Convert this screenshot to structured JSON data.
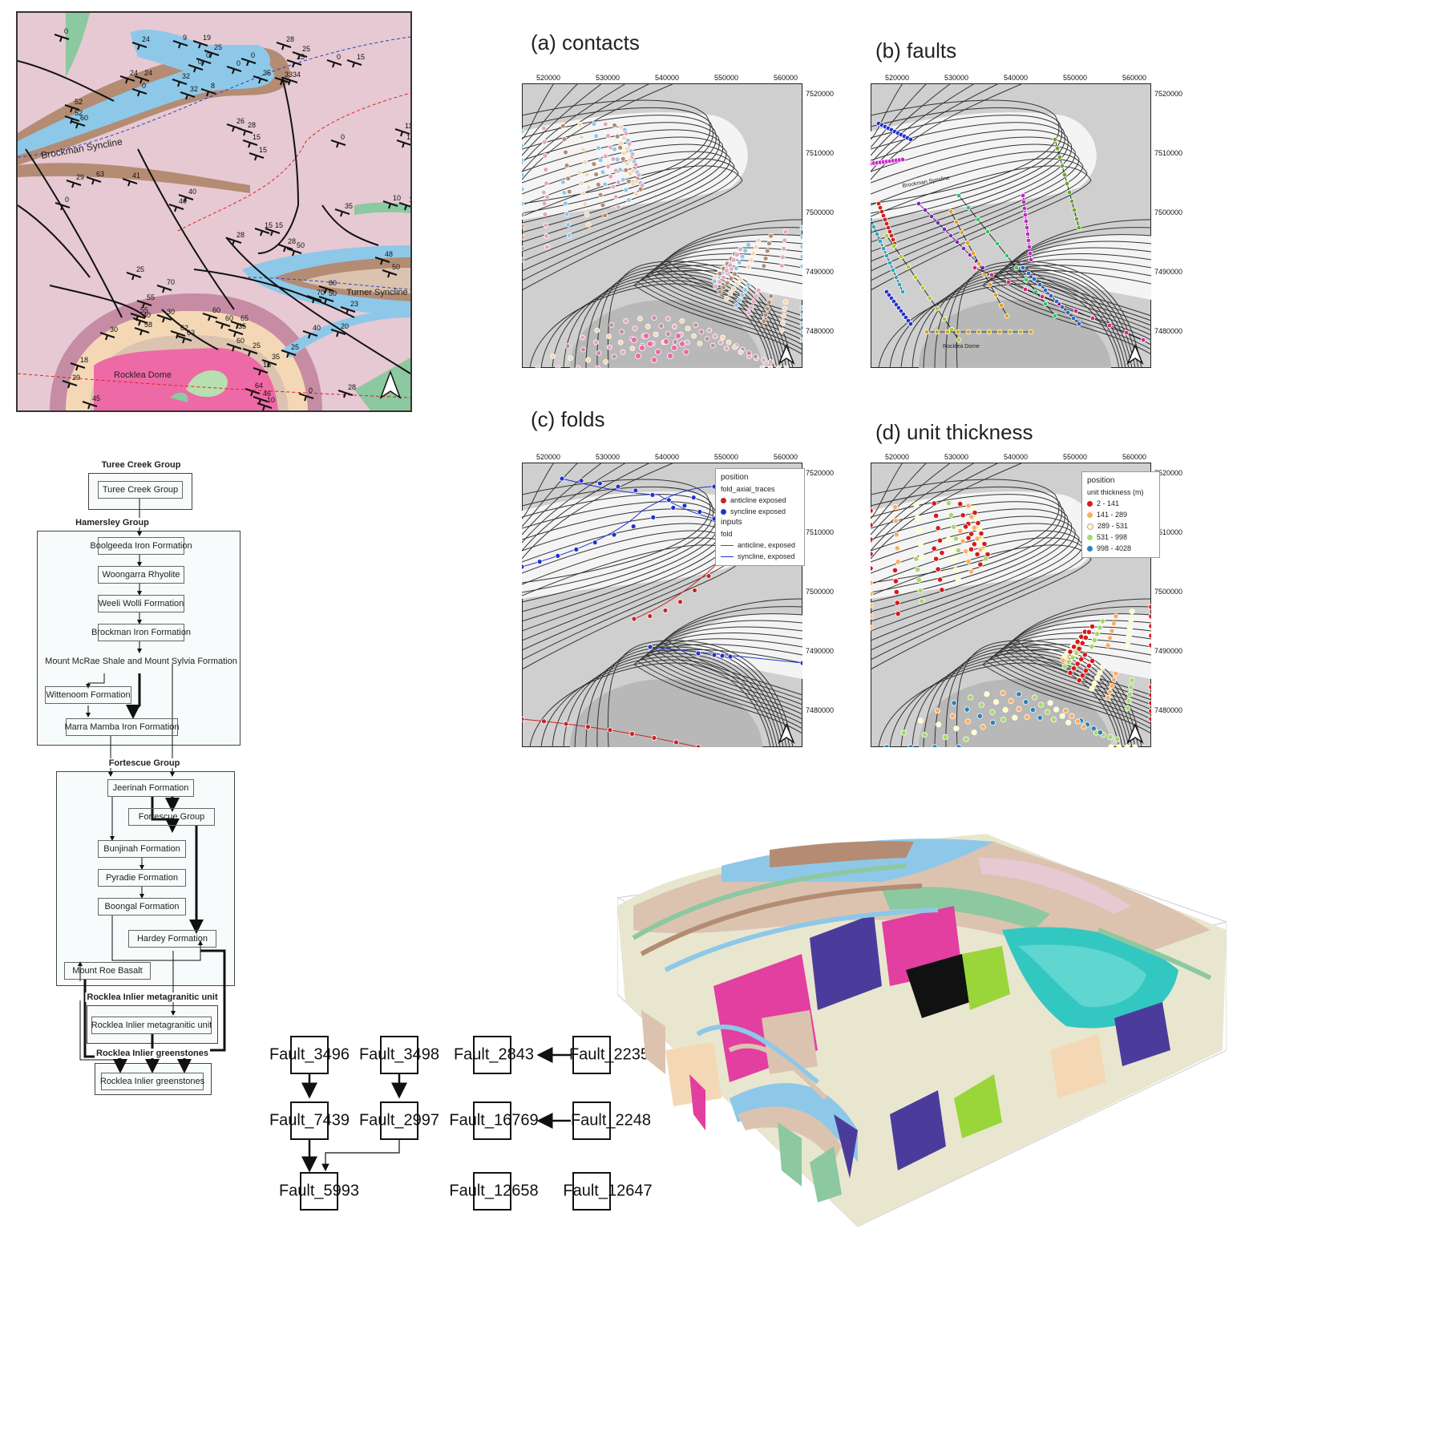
{
  "geology_map": {
    "labels": {
      "brockman": "Brockman Syncline",
      "turner": "Turner Syncline",
      "rocklea": "Rocklea Dome"
    },
    "dips": [
      "0",
      "24",
      "24",
      "9",
      "0",
      "19",
      "25",
      "0",
      "0",
      "0",
      "24",
      "0",
      "32",
      "32",
      "8",
      "28",
      "25",
      "25",
      "0",
      "35",
      "33",
      "34",
      "15",
      "52",
      "52",
      "60",
      "26",
      "28",
      "15",
      "15",
      "0",
      "11",
      "11",
      "29",
      "63",
      "41",
      "40",
      "40",
      "0",
      "10",
      "10",
      "35",
      "15",
      "15",
      "28",
      "50",
      "48",
      "50",
      "28",
      "80",
      "50",
      "23",
      "25",
      "70",
      "55",
      "55",
      "40",
      "30",
      "62",
      "58",
      "63",
      "60",
      "60",
      "65",
      "35",
      "60",
      "25",
      "25",
      "16",
      "35",
      "64",
      "46",
      "70",
      "40",
      "20",
      "30",
      "18",
      "29",
      "45",
      "10",
      "0",
      "28"
    ],
    "colors": {
      "base": "#e6c9d3",
      "blue": "#8ec8e8",
      "brown": "#b48c74",
      "tan": "#dcc3b0",
      "green": "#8cc8a0",
      "pink": "#ee6aa6",
      "peach": "#f4d8b6",
      "mauve": "#c68ca4"
    }
  },
  "panels": {
    "a": {
      "title": "(a) contacts"
    },
    "b": {
      "title": "(b) faults",
      "label_syncline": "Brockman Syncline",
      "label_dome": "Rocklea Dome"
    },
    "c": {
      "title": "(c) folds"
    },
    "d": {
      "title": "(d) unit thickness"
    }
  },
  "x_ticks": [
    "520000",
    "530000",
    "540000",
    "550000",
    "560000"
  ],
  "y_ticks": [
    "7520000",
    "7510000",
    "7500000",
    "7490000",
    "7480000"
  ],
  "folds_legend": {
    "heading": "position",
    "sub1": "fold_axial_traces",
    "item1": "anticline exposed",
    "item2": "syncline exposed",
    "heading2": "inputs",
    "sub2": "fold",
    "item3": "anticline, exposed",
    "item4": "syncline, exposed",
    "colors": {
      "anticline": "#cc2222",
      "syncline": "#2233cc"
    }
  },
  "thickness_legend": {
    "heading": "position",
    "sub": "unit thickness (m)",
    "classes": [
      {
        "label": "2 - 141",
        "color": "#d7191c"
      },
      {
        "label": "141 - 289",
        "color": "#fdae61"
      },
      {
        "label": "289 - 531",
        "color": "#ffffbf"
      },
      {
        "label": "531 - 998",
        "color": "#a6d96a"
      },
      {
        "label": "998 - 4028",
        "color": "#2b83ba"
      }
    ]
  },
  "stratigraphy": {
    "groups": {
      "turee": "Turee Creek Group",
      "hamersley": "Hamersley Group",
      "fortescue": "Fortescue Group",
      "rocklea_meta": "Rocklea Inlier metagranitic unit",
      "rocklea_green": "Rocklea Inlier greenstones"
    },
    "units": [
      {
        "label": "Turee Creek Group",
        "color": "#dcc3b0"
      },
      {
        "label": "Boolgeeda Iron Formation",
        "color": "#a9d8f0"
      },
      {
        "label": "Woongarra Rhyolite",
        "color": "#c6a08a"
      },
      {
        "label": "Weeli Wolli Formation",
        "color": "#dcc3b0"
      },
      {
        "label": "Brockman Iron Formation",
        "color": "#8ec8e8"
      },
      {
        "label": "Mount McRae Shale and Mount Sylvia Formation",
        "color": "#b07a5a"
      },
      {
        "label": "Wittenoom Formation",
        "color": "#dcc3b0"
      },
      {
        "label": "Marra Mamba Iron Formation",
        "color": "#a9d8f0"
      },
      {
        "label": "Jeerinah Formation",
        "color": "#e2b3c6"
      },
      {
        "label": "Fortescue Group",
        "color": "#8cc8a0"
      },
      {
        "label": "Bunjinah Formation",
        "color": "#e8c4d2"
      },
      {
        "label": "Pyradie Formation",
        "color": "#d8a4bc"
      },
      {
        "label": "Boongal Formation",
        "color": "#efd0dc"
      },
      {
        "label": "Hardey Formation",
        "color": "#f4d8b6"
      },
      {
        "label": "Mount Roe Basalt",
        "color": "#c47a98"
      },
      {
        "label": "Rocklea Inlier metagranitic unit",
        "color": "#ee6aa6"
      },
      {
        "label": "Rocklea Inlier greenstones",
        "color": "#e4e4e4"
      }
    ]
  },
  "fault_graph": {
    "nodes": [
      "Fault_3496",
      "Fault_3498",
      "Fault_2843",
      "Fault_2235",
      "Fault_7439",
      "Fault_2997",
      "Fault_16769",
      "Fault_2248",
      "Fault_5993",
      "Fault_12658",
      "Fault_12647"
    ]
  },
  "model3d": {
    "colors": [
      "#8ec8e8",
      "#dcc3b0",
      "#8cc8a0",
      "#f4d8b6",
      "#b48c74",
      "#e6c9d3",
      "#4b3c9c",
      "#e23fa0",
      "#33c7c2",
      "#9ad63a",
      "#e9e6cf"
    ]
  }
}
